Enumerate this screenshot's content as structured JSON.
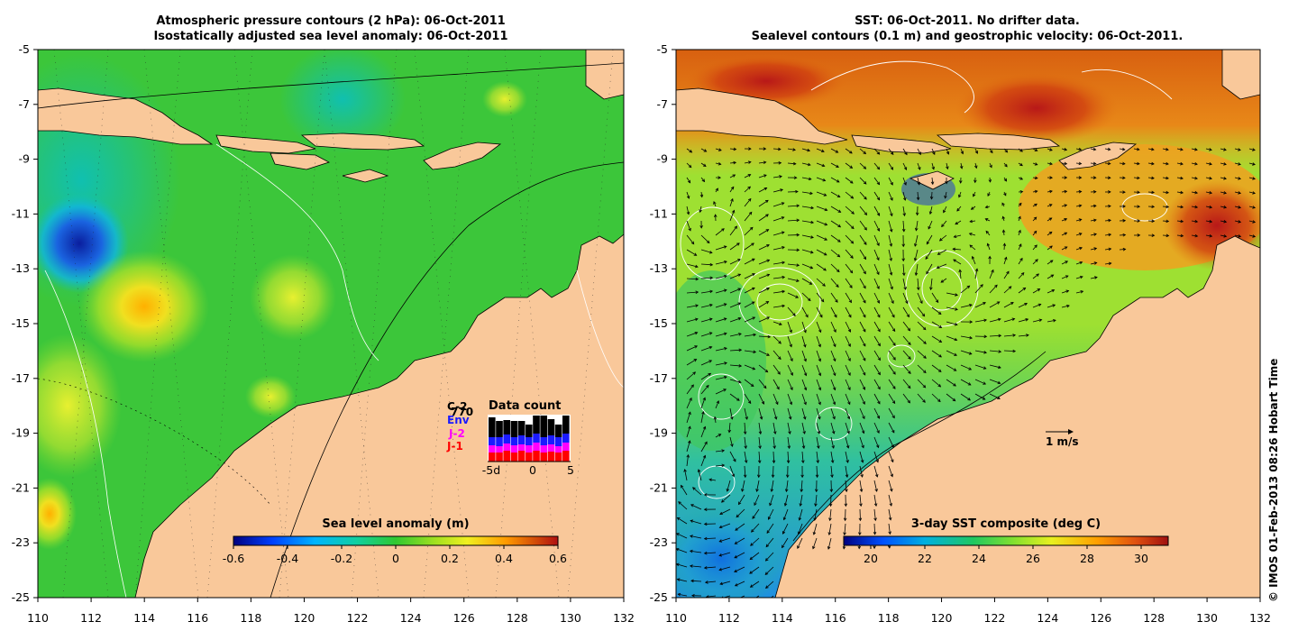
{
  "left_panel": {
    "title_line1": "Atmospheric pressure contours (2 hPa): 06-Oct-2011",
    "title_line2": "Isostatically adjusted sea level anomaly: 06-Oct-2011",
    "x_ticks": [
      "110",
      "112",
      "114",
      "116",
      "118",
      "120",
      "122",
      "124",
      "126",
      "128",
      "130",
      "132"
    ],
    "y_ticks": [
      "-5",
      "-7",
      "-9",
      "-11",
      "-13",
      "-15",
      "-17",
      "-19",
      "-21",
      "-23",
      "-25"
    ],
    "colorbar": {
      "title": "Sea level anomaly (m)",
      "ticks": [
        "-0.6",
        "-0.4",
        "-0.2",
        "0",
        "0.2",
        "0.4",
        "0.6"
      ],
      "range": [
        -0.6,
        0.6
      ]
    },
    "legend": {
      "title": "Data count",
      "count_value": "770",
      "entries": [
        {
          "label": "C-2",
          "color": "#000000"
        },
        {
          "label": "Env",
          "color": "#1a1aff"
        },
        {
          "label": "J-2",
          "color": "#ff00ff"
        },
        {
          "label": "J-1",
          "color": "#ff0000"
        }
      ],
      "axis_labels": [
        "-5d",
        "0",
        "5"
      ]
    }
  },
  "right_panel": {
    "title_line1": "SST: 06-Oct-2011. No drifter data.",
    "title_line2": "Sealevel contours (0.1 m) and geostrophic velocity: 06-Oct-2011.",
    "x_ticks": [
      "110",
      "112",
      "114",
      "116",
      "118",
      "120",
      "122",
      "124",
      "126",
      "128",
      "130",
      "132"
    ],
    "y_ticks": [
      "-5",
      "-7",
      "-9",
      "-11",
      "-13",
      "-15",
      "-17",
      "-19",
      "-21",
      "-23",
      "-25"
    ],
    "colorbar": {
      "title": "3-day SST composite (deg C)",
      "ticks": [
        "20",
        "22",
        "24",
        "26",
        "28",
        "30"
      ],
      "range": [
        19,
        31
      ]
    },
    "scale_label": "1 m/s"
  },
  "credit": "© IMOS 01-Feb-2013 08:26 Hobart Time",
  "colors": {
    "land": "#f9c89a",
    "sla_base": "#40c83a",
    "sst_base": "#9be030",
    "north_warm": "#e07a10"
  }
}
